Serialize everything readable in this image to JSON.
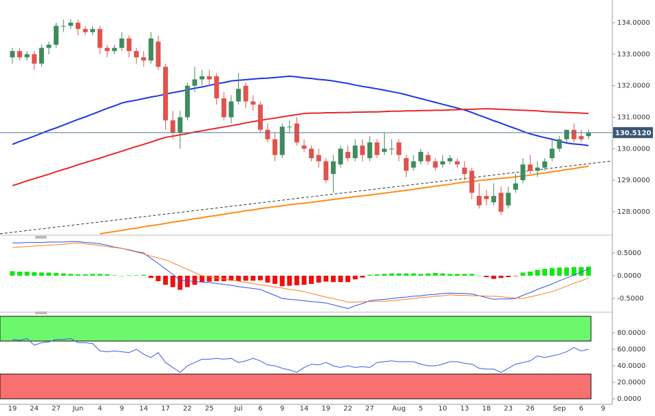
{
  "chart_data": [
    {
      "type": "candlestick",
      "categories": [
        "19",
        null,
        null,
        "24",
        null,
        null,
        "27",
        null,
        null,
        "Jun",
        null,
        null,
        "4",
        null,
        null,
        "9",
        null,
        null,
        "14",
        null,
        null,
        "17",
        null,
        null,
        "22",
        null,
        null,
        "25",
        null,
        null,
        null,
        "Jul",
        null,
        null,
        "6",
        null,
        null,
        "9",
        null,
        null,
        "14",
        null,
        null,
        "19",
        null,
        null,
        "22",
        null,
        null,
        "27",
        null,
        null,
        null,
        "Aug",
        null,
        null,
        "5",
        null,
        null,
        "10",
        null,
        null,
        "13",
        null,
        null,
        "18",
        null,
        null,
        "23",
        null,
        null,
        "26",
        null,
        null,
        null,
        "Sep",
        null,
        null,
        "6",
        null,
        null,
        "9"
      ],
      "open": [
        132.9,
        133.1,
        132.9,
        133.0,
        132.7,
        133.2,
        133.3,
        133.9,
        133.9,
        134.0,
        133.8,
        133.7,
        133.8,
        133.2,
        133.1,
        133.2,
        133.5,
        133.1,
        132.9,
        132.8,
        133.4,
        132.6,
        130.9,
        130.5,
        131.0,
        132.0,
        132.2,
        132.3,
        132.3,
        131.6,
        131.0,
        131.5,
        132.0,
        131.5,
        131.4,
        130.6,
        130.3,
        129.8,
        130.7,
        130.8,
        130.1,
        130.0,
        129.8,
        129.6,
        129.2,
        129.5,
        129.9,
        129.7,
        130.1,
        129.7,
        130.2,
        129.9,
        130.0,
        130.2,
        129.7,
        129.4,
        129.6,
        129.8,
        129.6,
        129.5,
        129.6,
        129.6,
        129.4,
        129.3,
        128.5,
        128.5,
        128.3,
        128.6,
        128.2,
        128.7,
        129.0,
        129.5,
        129.3,
        129.4,
        129.7,
        130.0,
        130.3,
        130.6,
        130.4,
        130.4,
        null,
        null
      ],
      "high": [
        133.2,
        133.2,
        133.1,
        133.1,
        133.3,
        133.4,
        134.0,
        134.1,
        134.1,
        134.1,
        133.9,
        133.9,
        133.9,
        133.3,
        133.3,
        133.7,
        133.6,
        133.2,
        133.1,
        133.7,
        133.6,
        132.7,
        131.2,
        131.2,
        132.1,
        132.6,
        132.5,
        132.5,
        132.4,
        131.8,
        131.7,
        132.4,
        132.1,
        131.7,
        131.5,
        130.8,
        130.5,
        130.8,
        130.9,
        131.0,
        130.3,
        130.1,
        130.0,
        129.7,
        129.8,
        130.1,
        130.1,
        130.3,
        130.3,
        130.4,
        130.3,
        130.5,
        130.3,
        130.3,
        129.8,
        129.8,
        130.0,
        129.9,
        129.7,
        129.8,
        129.8,
        129.7,
        129.6,
        129.4,
        128.9,
        128.7,
        128.9,
        128.8,
        128.8,
        129.2,
        129.7,
        129.8,
        129.6,
        129.7,
        130.3,
        130.4,
        130.6,
        130.8,
        130.6,
        130.6,
        null,
        null
      ],
      "low": [
        132.7,
        132.8,
        132.8,
        132.5,
        132.6,
        133.0,
        133.2,
        133.7,
        133.8,
        133.6,
        133.6,
        133.6,
        133.0,
        132.9,
        133.0,
        133.1,
        132.9,
        132.7,
        132.6,
        132.7,
        132.5,
        130.6,
        130.3,
        130.0,
        130.9,
        131.8,
        132.0,
        132.0,
        131.4,
        130.9,
        130.8,
        131.4,
        131.3,
        131.2,
        130.5,
        130.2,
        129.6,
        129.7,
        130.5,
        130.1,
        129.9,
        129.6,
        129.4,
        128.9,
        128.6,
        129.4,
        129.6,
        129.6,
        129.6,
        129.6,
        129.7,
        129.8,
        129.8,
        129.6,
        129.1,
        129.3,
        129.5,
        129.5,
        129.3,
        129.4,
        129.5,
        129.4,
        129.0,
        128.4,
        128.1,
        128.2,
        128.2,
        127.9,
        128.1,
        128.6,
        128.9,
        129.2,
        129.1,
        129.3,
        129.6,
        129.9,
        130.2,
        130.2,
        130.2,
        130.3,
        null,
        null
      ],
      "close": [
        133.1,
        132.9,
        133.0,
        132.7,
        133.2,
        133.3,
        133.9,
        133.9,
        134.0,
        133.8,
        133.7,
        133.8,
        133.2,
        133.1,
        133.2,
        133.5,
        133.1,
        132.9,
        132.8,
        133.5,
        132.6,
        130.9,
        130.5,
        131.0,
        132.0,
        132.2,
        132.3,
        132.2,
        131.6,
        131.0,
        131.5,
        131.9,
        131.5,
        131.4,
        130.6,
        130.3,
        129.8,
        130.7,
        130.7,
        130.2,
        130.0,
        129.7,
        129.6,
        129.0,
        129.6,
        130.0,
        129.7,
        130.1,
        129.8,
        130.2,
        129.8,
        130.0,
        130.0,
        129.8,
        129.3,
        129.6,
        129.9,
        129.6,
        129.4,
        129.6,
        129.7,
        129.5,
        129.2,
        128.6,
        128.2,
        128.4,
        128.5,
        128.0,
        128.6,
        128.9,
        129.5,
        129.3,
        129.4,
        129.6,
        130.0,
        130.3,
        130.6,
        130.3,
        130.3,
        130.5,
        null,
        null
      ],
      "up_color": "#3d8b5e",
      "down_color": "#e0534b",
      "series": [
        {
          "color": "#1c35e6",
          "values": [
            130.14,
            130.23,
            130.31,
            130.4,
            130.49,
            130.58,
            130.66,
            130.75,
            130.84,
            130.93,
            131.01,
            131.1,
            131.19,
            131.28,
            131.36,
            131.45,
            131.5,
            131.54,
            131.59,
            131.64,
            131.68,
            131.73,
            131.78,
            131.82,
            131.87,
            131.92,
            131.96,
            132.01,
            132.06,
            132.1,
            132.15,
            132.17,
            132.19,
            132.21,
            132.23,
            132.24,
            132.26,
            132.28,
            132.3,
            132.28,
            132.25,
            132.23,
            132.2,
            132.18,
            132.15,
            132.11,
            132.07,
            132.02,
            131.98,
            131.94,
            131.9,
            131.86,
            131.81,
            131.77,
            131.71,
            131.65,
            131.59,
            131.53,
            131.47,
            131.41,
            131.35,
            131.29,
            131.23,
            131.15,
            131.06,
            130.98,
            130.89,
            130.81,
            130.72,
            130.64,
            130.55,
            130.47,
            130.41,
            130.35,
            130.3,
            130.24,
            130.18,
            130.15,
            130.13,
            130.1,
            null,
            null
          ]
        },
        {
          "color": "#e8252b",
          "values": [
            128.83,
            128.9,
            128.98,
            129.05,
            129.12,
            129.19,
            129.27,
            129.34,
            129.41,
            129.49,
            129.56,
            129.63,
            129.7,
            129.78,
            129.85,
            129.92,
            130.0,
            130.07,
            130.14,
            130.21,
            130.29,
            130.36,
            130.4,
            130.44,
            130.48,
            130.53,
            130.57,
            130.61,
            130.65,
            130.69,
            130.73,
            130.77,
            130.82,
            130.86,
            130.9,
            130.94,
            130.97,
            131.01,
            131.05,
            131.08,
            131.12,
            131.13,
            131.13,
            131.14,
            131.14,
            131.15,
            131.15,
            131.16,
            131.16,
            131.17,
            131.17,
            131.18,
            131.19,
            131.19,
            131.2,
            131.2,
            131.21,
            131.21,
            131.22,
            131.22,
            131.23,
            131.24,
            131.25,
            131.25,
            131.26,
            131.27,
            131.26,
            131.25,
            131.24,
            131.23,
            131.22,
            131.21,
            131.2,
            131.18,
            131.17,
            131.16,
            131.15,
            131.14,
            131.13,
            131.12,
            null,
            null
          ]
        },
        {
          "color": "#ff8c1a",
          "values": [
            null,
            null,
            null,
            null,
            null,
            null,
            null,
            null,
            null,
            null,
            null,
            null,
            127.3,
            127.34,
            127.37,
            127.41,
            127.45,
            127.48,
            127.52,
            127.56,
            127.59,
            127.63,
            127.67,
            127.7,
            127.74,
            127.78,
            127.81,
            127.85,
            127.88,
            127.92,
            127.96,
            127.99,
            128.03,
            128.06,
            128.1,
            128.13,
            128.16,
            128.19,
            128.22,
            128.25,
            128.27,
            128.3,
            128.33,
            128.36,
            128.39,
            128.42,
            128.45,
            128.48,
            128.5,
            128.53,
            128.56,
            128.59,
            128.62,
            128.65,
            128.68,
            128.71,
            128.75,
            128.78,
            128.81,
            128.84,
            128.87,
            128.91,
            128.94,
            128.96,
            128.99,
            129.01,
            129.04,
            129.06,
            129.08,
            129.11,
            129.13,
            129.16,
            129.2,
            129.23,
            129.27,
            129.3,
            129.34,
            129.37,
            129.41,
            129.44,
            null,
            null
          ]
        }
      ],
      "last_price": {
        "value": 130.512,
        "label": "130.5120"
      },
      "ylim": [
        127.3,
        134.72
      ],
      "yticks": [
        {
          "value": 128,
          "label": "128.0000"
        },
        {
          "value": 129,
          "label": "129.0000"
        },
        {
          "value": 130,
          "label": "130.0000"
        },
        {
          "value": 131,
          "label": "131.0000"
        },
        {
          "value": 132,
          "label": "132.0000"
        },
        {
          "value": 133,
          "label": "133.0000"
        },
        {
          "value": 134,
          "label": "134.0000"
        }
      ]
    },
    {
      "type": "macd",
      "histogram": {
        "positive_color": "#14e614",
        "negative_color": "#f01010",
        "values": [
          0.1,
          0.09,
          0.09,
          0.08,
          0.07,
          0.07,
          0.06,
          0.05,
          0.04,
          0.03,
          0.03,
          0.04,
          0.04,
          0.03,
          0.01,
          0,
          0.01,
          0.01,
          0.02,
          -0.05,
          -0.12,
          -0.2,
          -0.25,
          -0.31,
          -0.25,
          -0.2,
          -0.14,
          -0.13,
          -0.12,
          -0.12,
          -0.11,
          -0.12,
          -0.11,
          -0.11,
          -0.1,
          -0.15,
          -0.18,
          -0.23,
          -0.22,
          -0.21,
          -0.2,
          -0.18,
          -0.15,
          -0.13,
          -0.14,
          -0.14,
          -0.14,
          -0.08,
          -0.04,
          0.02,
          0.03,
          0.04,
          0.05,
          0.05,
          0.05,
          0.05,
          0.04,
          0.05,
          0.06,
          0.05,
          0.04,
          0.04,
          0.04,
          0.04,
          0,
          -0.03,
          -0.07,
          -0.05,
          -0.03,
          -0.01,
          0.07,
          0.09,
          0.13,
          0.15,
          0.17,
          0.18,
          0.18,
          0.19,
          0.19,
          0.2,
          null,
          null
        ]
      },
      "series": [
        {
          "color": "#2f4fe8",
          "values": [
            0.72,
            0.72,
            0.73,
            0.73,
            0.73,
            0.74,
            0.74,
            0.74,
            0.75,
            0.75,
            0.73,
            0.72,
            0.7,
            0.67,
            0.63,
            0.6,
            0.57,
            0.53,
            0.5,
            0.38,
            0.27,
            0.15,
            0.03,
            -0.1,
            -0.11,
            -0.13,
            -0.14,
            -0.15,
            -0.17,
            -0.19,
            -0.21,
            -0.24,
            -0.26,
            -0.28,
            -0.3,
            -0.37,
            -0.43,
            -0.5,
            -0.52,
            -0.53,
            -0.55,
            -0.57,
            -0.58,
            -0.6,
            -0.64,
            -0.68,
            -0.72,
            -0.66,
            -0.61,
            -0.55,
            -0.53,
            -0.52,
            -0.5,
            -0.48,
            -0.47,
            -0.45,
            -0.44,
            -0.42,
            -0.41,
            -0.39,
            -0.38,
            -0.39,
            -0.39,
            -0.4,
            -0.44,
            -0.48,
            -0.52,
            -0.51,
            -0.51,
            -0.5,
            -0.43,
            -0.37,
            -0.3,
            -0.24,
            -0.18,
            -0.11,
            -0.05,
            0.02,
            0.08,
            0.15,
            null,
            null
          ]
        },
        {
          "color": "#ff7a24",
          "values": [
            0.62,
            0.63,
            0.64,
            0.65,
            0.66,
            0.67,
            0.68,
            0.69,
            0.71,
            0.72,
            0.7,
            0.68,
            0.66,
            0.64,
            0.62,
            0.6,
            0.56,
            0.52,
            0.48,
            0.43,
            0.39,
            0.35,
            0.28,
            0.21,
            0.14,
            0.07,
            0.0,
            -0.02,
            -0.05,
            -0.07,
            -0.1,
            -0.12,
            -0.15,
            -0.17,
            -0.2,
            -0.22,
            -0.25,
            -0.27,
            -0.3,
            -0.32,
            -0.35,
            -0.39,
            -0.43,
            -0.47,
            -0.5,
            -0.54,
            -0.58,
            -0.58,
            -0.57,
            -0.57,
            -0.56,
            -0.56,
            -0.55,
            -0.53,
            -0.52,
            -0.5,
            -0.48,
            -0.47,
            -0.45,
            -0.44,
            -0.42,
            -0.43,
            -0.43,
            -0.44,
            -0.44,
            -0.45,
            -0.45,
            -0.46,
            -0.48,
            -0.49,
            -0.5,
            -0.46,
            -0.43,
            -0.39,
            -0.35,
            -0.29,
            -0.23,
            -0.17,
            -0.11,
            -0.05,
            null,
            null
          ]
        }
      ],
      "ylim": [
        -0.74,
        0.8
      ],
      "yticks": [
        {
          "value": 0.5,
          "label": "0.5000"
        },
        {
          "value": 0,
          "label": "0.0000"
        },
        {
          "value": -0.5,
          "label": "-0.5000"
        }
      ]
    },
    {
      "type": "rsi",
      "color": "#3a5ae8",
      "values": [
        72,
        71,
        73,
        65,
        68,
        69,
        72,
        72,
        73,
        68,
        68,
        67,
        58,
        57,
        58,
        57,
        56,
        60,
        54,
        50,
        56,
        44,
        38,
        32,
        40,
        44,
        48,
        48,
        49,
        48,
        49,
        44,
        46,
        49,
        46,
        41,
        40,
        37,
        35,
        32,
        38,
        42,
        41,
        44,
        40,
        38,
        40,
        38,
        39,
        38,
        44,
        45,
        46,
        45,
        45,
        45,
        42,
        40,
        40,
        42,
        45,
        45,
        43,
        42,
        37,
        36,
        36,
        32,
        37,
        42,
        44,
        46,
        52,
        50,
        52,
        54,
        57,
        62,
        58,
        60,
        null,
        null
      ],
      "overbought": [
        70,
        100
      ],
      "overbought_color": "#6cf86c",
      "oversold": [
        0,
        30
      ],
      "oversold_color": "#f87070",
      "ylim": [
        0,
        100
      ],
      "yticks": [
        {
          "value": 0,
          "label": "0.0000"
        },
        {
          "value": 20,
          "label": "20.0000"
        },
        {
          "value": 40,
          "label": "40.0000"
        },
        {
          "value": 60,
          "label": "60.0000"
        },
        {
          "value": 80,
          "label": "80.0000"
        }
      ]
    }
  ]
}
